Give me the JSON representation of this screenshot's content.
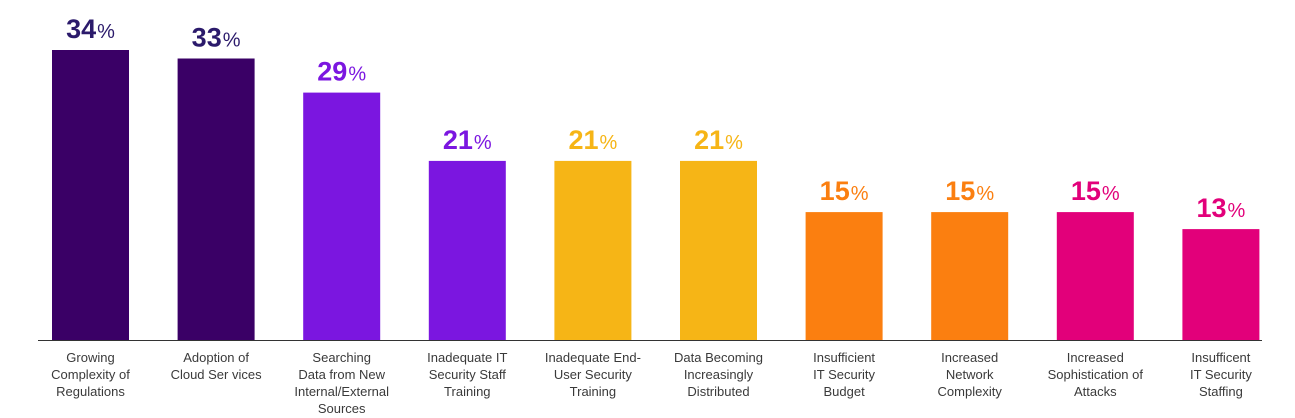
{
  "chart_data": {
    "type": "bar",
    "categories": [
      [
        "Growing",
        "Complexity of",
        "Regulations"
      ],
      [
        "Adoption of",
        "Cloud Ser vices"
      ],
      [
        "Searching",
        "Data from New",
        "Internal/External",
        "Sources"
      ],
      [
        "Inadequate IT",
        "Security Staff",
        "Training"
      ],
      [
        "Inadequate End-",
        "User Security",
        "Training"
      ],
      [
        "Data Becoming",
        "Increasingly",
        "Distributed"
      ],
      [
        "Insufficient",
        "IT Security",
        "Budget"
      ],
      [
        "Increased",
        "Network",
        "Complexity"
      ],
      [
        "Increased",
        "Sophistication of",
        "Attacks"
      ],
      [
        "Insufficent",
        "IT Security",
        "Staffing"
      ]
    ],
    "values": [
      34,
      33,
      29,
      21,
      21,
      21,
      15,
      15,
      15,
      13
    ],
    "value_labels": [
      "34",
      "33",
      "29",
      "21",
      "21",
      "21",
      "15",
      "15",
      "15",
      "13"
    ],
    "value_suffix": "%",
    "colors": [
      "#3a0066",
      "#3a0066",
      "#7b16e0",
      "#7b16e0",
      "#f6b516",
      "#f6b516",
      "#fb7f10",
      "#fb7f10",
      "#e2007a",
      "#e2007a"
    ],
    "label_colors": [
      "#2b1a6b",
      "#2b1a6b",
      "#7b16e0",
      "#7b16e0",
      "#f6b516",
      "#f6b516",
      "#fb7f10",
      "#fb7f10",
      "#e2007a",
      "#e2007a"
    ],
    "baseline_color": "#333333",
    "ylim": [
      0,
      34
    ],
    "grid": false,
    "title": "",
    "xlabel": "",
    "ylabel": ""
  }
}
